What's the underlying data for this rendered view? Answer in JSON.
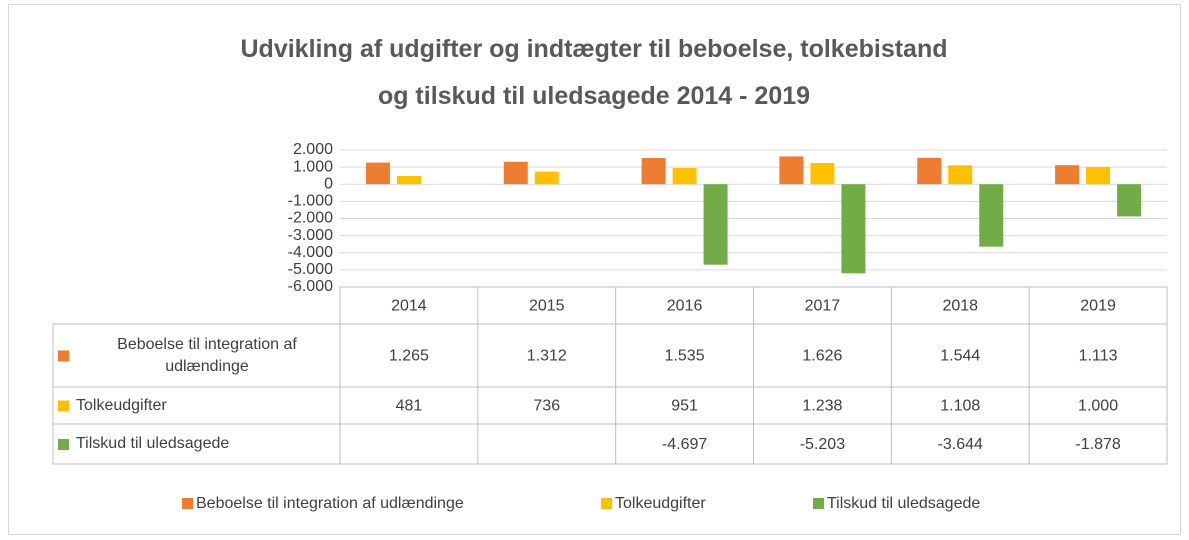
{
  "chart_data": {
    "type": "bar",
    "title": "Udvikling af udgifter og indtægter til beboelse, tolkebistand\nog tilskud til uledsagede  2014 - 2019",
    "categories": [
      "2014",
      "2015",
      "2016",
      "2017",
      "2018",
      "2019"
    ],
    "series": [
      {
        "name": "Beboelse til integration af udlændinge",
        "color": "#ed7d31",
        "values": [
          1265,
          1312,
          1535,
          1626,
          1544,
          1113
        ],
        "value_labels": [
          "1.265",
          "1.312",
          "1.535",
          "1.626",
          "1.544",
          "1.113"
        ]
      },
      {
        "name": "Tolkeudgifter",
        "color": "#ffc000",
        "values": [
          481,
          736,
          951,
          1238,
          1108,
          1000
        ],
        "value_labels": [
          "481",
          "736",
          "951",
          "1.238",
          "1.108",
          "1.000"
        ]
      },
      {
        "name": "Tilskud til uledsagede",
        "color": "#70ad47",
        "values": [
          null,
          null,
          -4697,
          -5203,
          -3644,
          -1878
        ],
        "value_labels": [
          null,
          null,
          "-4.697",
          "-5.203",
          "-3.644",
          "-1.878"
        ]
      }
    ],
    "ylim": [
      -6000,
      2000
    ],
    "yticks": [
      {
        "value": 2000,
        "label": "2.000"
      },
      {
        "value": 1000,
        "label": "1.000"
      },
      0,
      {
        "value": -1000,
        "label": "-1.000"
      },
      {
        "value": -2000,
        "label": "-2.000"
      },
      {
        "value": -3000,
        "label": "-3.000"
      },
      {
        "value": -4000,
        "label": "-4.000"
      },
      {
        "value": -5000,
        "label": "-5.000"
      },
      {
        "value": -6000,
        "label": "-6.000"
      }
    ],
    "grid": true,
    "legend": "bottom",
    "data_table": true
  }
}
